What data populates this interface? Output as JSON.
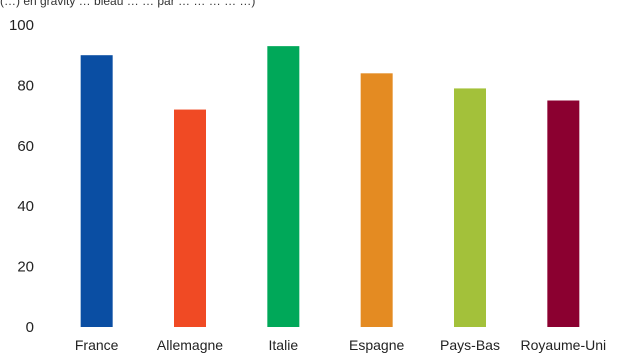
{
  "chart_data": {
    "type": "bar",
    "title": "",
    "caption": "(…) en gravity … bleau … … par … … … … …)",
    "xlabel": "",
    "ylabel": "",
    "categories": [
      "France",
      "Allemagne",
      "Italie",
      "Espagne",
      "Pays-Bas",
      "Royaume-Uni"
    ],
    "values": [
      90,
      72,
      93,
      84,
      79,
      75
    ],
    "colors": [
      "#0a4ea3",
      "#f04a24",
      "#00a859",
      "#e48b22",
      "#a3c13a",
      "#8b0030"
    ],
    "ylim": [
      0,
      100
    ],
    "yticks": [
      0,
      20,
      40,
      60,
      80,
      100
    ],
    "grid": false,
    "legend": "none"
  }
}
